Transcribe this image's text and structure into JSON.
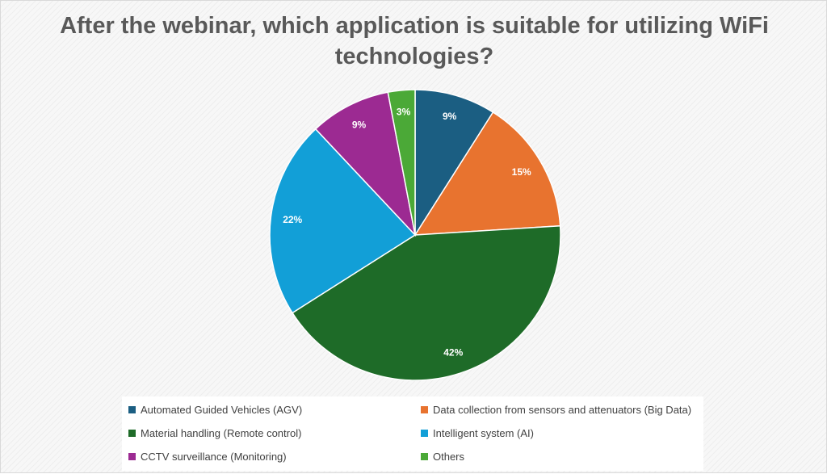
{
  "chart_data": {
    "type": "pie",
    "title": "After the webinar, which application is suitable for utilizing WiFi technologies?",
    "slices": [
      {
        "label": "Automated Guided Vehicles (AGV)",
        "value": 9,
        "data_label": "9%",
        "color": "#1b5e82"
      },
      {
        "label": "Data collection from sensors and attenuators (Big Data)",
        "value": 15,
        "data_label": "15%",
        "color": "#e8732f"
      },
      {
        "label": "Material handling (Remote control)",
        "value": 42,
        "data_label": "42%",
        "color": "#1e6b28"
      },
      {
        "label": "Intelligent system (AI)",
        "value": 22,
        "data_label": "22%",
        "color": "#129fd7"
      },
      {
        "label": "CCTV surveillance (Monitoring)",
        "value": 9,
        "data_label": "9%",
        "color": "#9c2a92"
      },
      {
        "label": "Others",
        "value": 3,
        "data_label": "3%",
        "color": "#4ba937"
      }
    ],
    "legend_position": "bottom",
    "start_angle": "12 o'clock",
    "direction": "clockwise"
  }
}
